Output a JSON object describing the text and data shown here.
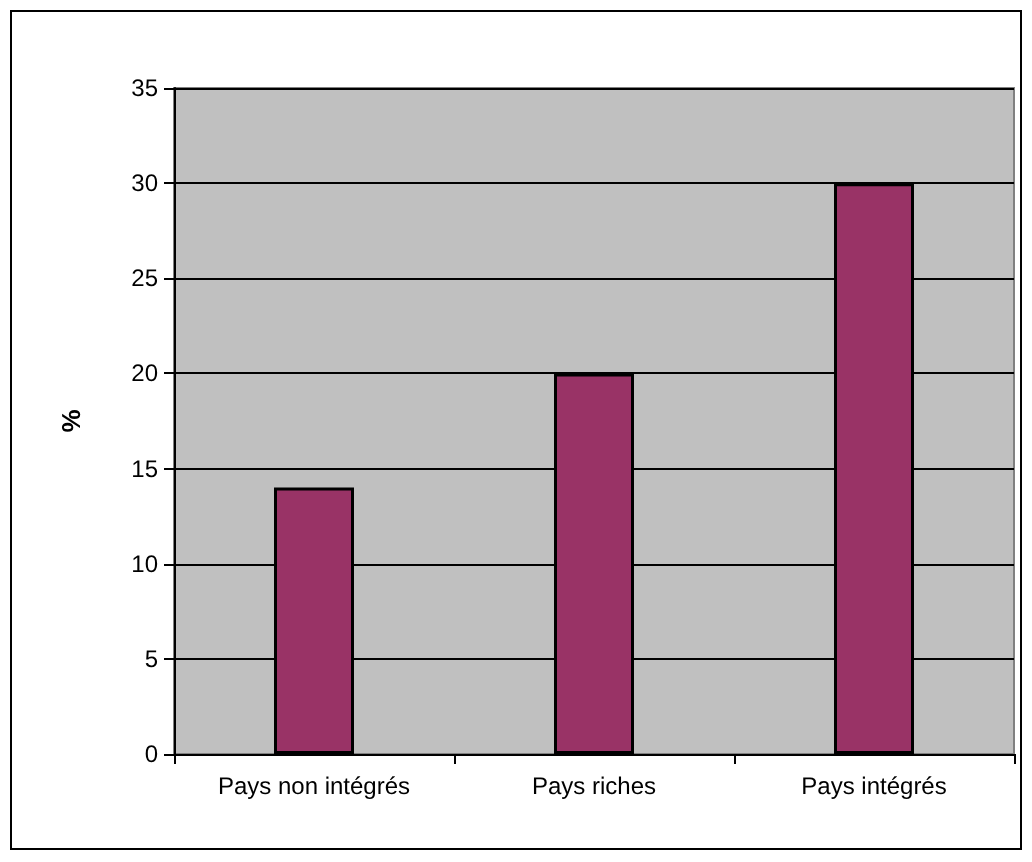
{
  "chart_data": {
    "type": "bar",
    "ylabel": "%",
    "categories": [
      "Pays non intégrés",
      "Pays riches",
      "Pays intégrés"
    ],
    "values": [
      14,
      20,
      30
    ],
    "color": "#993366",
    "ylim": [
      0,
      35
    ],
    "yticks": [
      0,
      5,
      10,
      15,
      20,
      25,
      30,
      35
    ],
    "grid": "y"
  }
}
